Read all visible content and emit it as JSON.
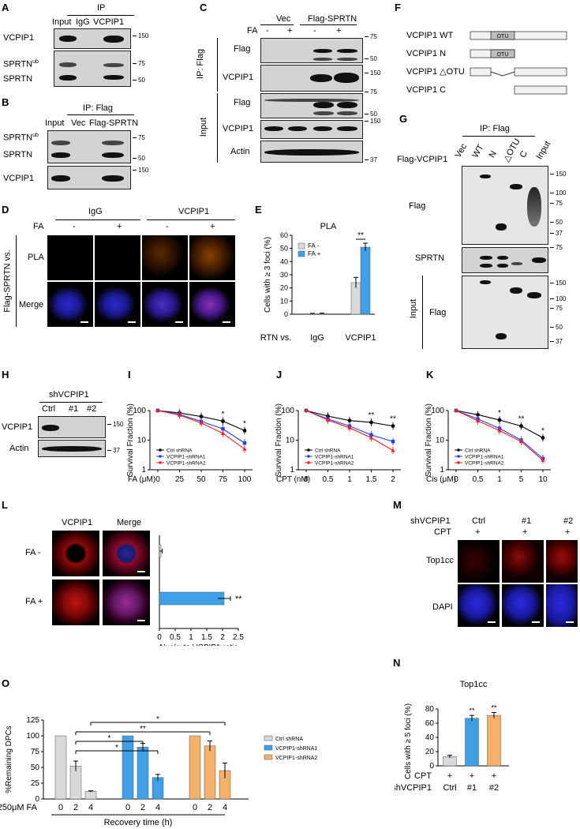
{
  "panels": {
    "A": {
      "letter": "A",
      "ip": "IP",
      "lanes": [
        "Input",
        "IgG",
        "VCPIP1"
      ],
      "rows": [
        "VCPIP1",
        "SPRTN",
        "SPRTN"
      ],
      "ub": "ub",
      "mw": [
        "150",
        "75",
        "50"
      ]
    },
    "B": {
      "letter": "B",
      "ip": "IP: Flag",
      "lanes": [
        "Input",
        "Vec",
        "Flag-SPRTN"
      ],
      "rows": [
        "SPRTN",
        "SPRTN",
        "VCPIP1"
      ],
      "ub": "ub",
      "mw": [
        "75",
        "50",
        "150"
      ]
    },
    "C": {
      "letter": "C",
      "groups": [
        "Vec",
        "Flag-SPRTN"
      ],
      "fa": "FA",
      "signs": [
        "-",
        "+",
        "-",
        "+"
      ],
      "side1": "IP: Flag",
      "side2": "Input",
      "rows": [
        "Flag",
        "VCPIP1",
        "Flag",
        "VCPIP1",
        "Actin"
      ],
      "mw": [
        "75",
        "50",
        "150",
        "75",
        "50",
        "150",
        "37"
      ]
    },
    "D": {
      "letter": "D",
      "cols": [
        "IgG",
        "VCPIP1"
      ],
      "fa": "FA",
      "signs": [
        "-",
        "+",
        "-",
        "+"
      ],
      "rows": [
        "PLA",
        "Merge"
      ],
      "side": "Flag-SPRTN vs."
    },
    "E": {
      "letter": "E",
      "title": "PLA",
      "ylabel": "Cells with ≥ 3 foci (%)",
      "xlabel_prefix": "Flag-SPRTN vs.",
      "legend": [
        "FA -",
        "FA +"
      ],
      "sig": "**"
    },
    "F": {
      "letter": "F",
      "constructs": [
        "VCPIP1 WT",
        "VCPIP1 N",
        "VCPIP1 △OTU",
        "VCPIP1 C"
      ],
      "domain": "OTU"
    },
    "G": {
      "letter": "G",
      "ip": "IP: Flag",
      "row_label": "Flag-VCPIP1",
      "lanes": [
        "Vec",
        "WT",
        "N",
        "△OTU",
        "C",
        "Input"
      ],
      "rows": [
        "Flag",
        "SPRTN",
        "Flag"
      ],
      "side": "Input",
      "mw": [
        "150",
        "100",
        "75",
        "50",
        "37",
        "75",
        "150",
        "100",
        "75",
        "50",
        "37"
      ]
    },
    "H": {
      "letter": "H",
      "title": "shVCPIP1",
      "lanes": [
        "Ctrl",
        "#1",
        "#2"
      ],
      "rows": [
        "VCPIP1",
        "Actin"
      ],
      "mw": [
        "150",
        "37"
      ]
    },
    "I": {
      "letter": "I",
      "xlabel": "FA (μM)"
    },
    "J": {
      "letter": "J",
      "xlabel": "CPT (nM)"
    },
    "K": {
      "letter": "K",
      "xlabel": "Cis (μM)"
    },
    "L": {
      "letter": "L",
      "cols": [
        "VCPIP1",
        "Merge"
      ],
      "rows": [
        "FA -",
        "FA +"
      ],
      "xlabel": "Nuc/cyto VCPIP1 ratio",
      "sig": "**"
    },
    "M": {
      "letter": "M",
      "title": "shVCPIP1",
      "cpt": "CPT",
      "lanes": [
        "Ctrl",
        "#1",
        "#2"
      ],
      "signs": [
        "+",
        "+",
        "+"
      ],
      "rows": [
        "Top1cc",
        "DAPI"
      ]
    },
    "N": {
      "letter": "N",
      "title": "Top1cc",
      "ylabel": "Cells with ≥ 5 foci (%)",
      "cpt": "CPT",
      "sh": "shVCPIP1",
      "signs": [
        "+",
        "+",
        "+"
      ],
      "lanes": [
        "Ctrl",
        "#1",
        "#2"
      ],
      "sig": [
        "**",
        "**"
      ]
    },
    "O": {
      "letter": "O",
      "ylabel": "%Remaining DPCs",
      "fa": "250μM FA",
      "xlabel": "Recovery time (h)",
      "legend": [
        "Ctrl shRNA",
        "VCPIP1-shRNA1",
        "VCPIP1-shRNA2"
      ],
      "sig": [
        "*",
        "**",
        "*",
        "*"
      ]
    }
  },
  "survival_legend": [
    "Ctrl shRNA",
    "VCPIP1-shRNA1",
    "VCPIP1-shRNA2"
  ],
  "survival_ylabel": "Survival  Fraction (%)",
  "colors": {
    "ctrl": "#000000",
    "sh1": "#1f3fff",
    "sh2": "#ff1f1f",
    "fa_minus": "#d9d9d9",
    "fa_plus": "#3fa0e8",
    "orange": "#f5b06a",
    "grey": "#d9d9d9",
    "blue": "#3fa0e8"
  },
  "chart_data": [
    {
      "id": "E",
      "type": "bar",
      "title": "PLA",
      "categories": [
        "IgG",
        "VCPIP1"
      ],
      "series": [
        {
          "name": "FA -",
          "values": [
            0.4,
            24
          ]
        },
        {
          "name": "FA +",
          "values": [
            0.5,
            51
          ]
        }
      ],
      "errors": [
        [
          0.3,
          4
        ],
        [
          0.3,
          3
        ]
      ],
      "ylabel": "Cells with ≥ 3 foci (%)",
      "ylim": [
        0,
        60
      ],
      "yticks": [
        0,
        10,
        20,
        30,
        40,
        50,
        60
      ]
    },
    {
      "id": "I",
      "type": "line",
      "x": [
        "0",
        "25",
        "50",
        "75",
        "100"
      ],
      "series": [
        {
          "name": "Ctrl shRNA",
          "values": [
            100,
            83,
            63,
            44,
            21
          ]
        },
        {
          "name": "VCPIP1-shRNA1",
          "values": [
            100,
            74,
            43,
            24,
            8
          ]
        },
        {
          "name": "VCPIP1-shRNA2",
          "values": [
            100,
            70,
            38,
            17,
            5
          ]
        }
      ],
      "xlabel": "FA (μM)",
      "ylabel": "Survival  Fraction (%)",
      "yscale": "log",
      "yticks": [
        1,
        10,
        100
      ],
      "sig": [
        "",
        "",
        "",
        "*",
        "*"
      ]
    },
    {
      "id": "J",
      "type": "line",
      "x": [
        "0",
        "0.5",
        "1",
        "1.5",
        "2"
      ],
      "series": [
        {
          "name": "Ctrl shRNA",
          "values": [
            100,
            65,
            46,
            40,
            30
          ]
        },
        {
          "name": "VCPIP1-shRNA1",
          "values": [
            100,
            52,
            30,
            15,
            9
          ]
        },
        {
          "name": "VCPIP1-shRNA2",
          "values": [
            100,
            48,
            26,
            12,
            4.5
          ]
        }
      ],
      "xlabel": "CPT (nM)",
      "ylabel": "Survival  Fraction (%)",
      "yscale": "log",
      "yticks": [
        1,
        10,
        100
      ],
      "sig": [
        "",
        "",
        "",
        "**",
        "**"
      ]
    },
    {
      "id": "K",
      "type": "line",
      "x": [
        "0",
        "0.5",
        "1",
        "5",
        "10"
      ],
      "series": [
        {
          "name": "Ctrl shRNA",
          "values": [
            100,
            72,
            48,
            30,
            12
          ]
        },
        {
          "name": "VCPIP1-shRNA1",
          "values": [
            100,
            52,
            25,
            10,
            2.4
          ]
        },
        {
          "name": "VCPIP1-shRNA2",
          "values": [
            100,
            45,
            21,
            9,
            2.1
          ]
        }
      ],
      "xlabel": "Cis (μM)",
      "ylabel": "Survival  Fraction (%)",
      "yscale": "log",
      "yticks": [
        1,
        10,
        100
      ],
      "sig": [
        "",
        "",
        "*",
        "**",
        "*"
      ]
    },
    {
      "id": "L",
      "type": "bar",
      "orientation": "horizontal",
      "categories": [
        "FA -",
        "FA +"
      ],
      "values": [
        0.05,
        2.05
      ],
      "errors": [
        0.04,
        0.2
      ],
      "xlabel": "Nuc/cyto VCPIP1 ratio",
      "xlim": [
        0,
        2.5
      ],
      "xticks": [
        "0",
        "0.5",
        "1",
        "1.5",
        "2",
        "2.5"
      ]
    },
    {
      "id": "N",
      "type": "bar",
      "title": "Top1cc",
      "categories": [
        "Ctrl",
        "#1",
        "#2"
      ],
      "values": [
        13,
        67,
        71
      ],
      "errors": [
        2,
        4,
        4
      ],
      "ylabel": "Cells with ≥ 5 foci (%)",
      "ylim": [
        0,
        80
      ],
      "yticks": [
        0,
        20,
        40,
        60,
        80
      ],
      "colors": [
        "#d9d9d9",
        "#3fa0e8",
        "#f5b06a"
      ]
    },
    {
      "id": "O",
      "type": "bar",
      "categories": [
        "0",
        "2",
        "4",
        "0",
        "2",
        "4",
        "0",
        "2",
        "4"
      ],
      "groups": [
        "Ctrl shRNA",
        "VCPIP1-shRNA1",
        "VCPIP1-shRNA2"
      ],
      "values": [
        100,
        52,
        12,
        100,
        82,
        34,
        100,
        84,
        45
      ],
      "errors": [
        0,
        8,
        1,
        0,
        6,
        5,
        0,
        8,
        12
      ],
      "ylabel": "%Remaining DPCs",
      "xlabel": "Recovery time (h)",
      "ylim": [
        0,
        125
      ],
      "yticks": [
        0,
        25,
        50,
        75,
        100,
        125
      ]
    }
  ]
}
